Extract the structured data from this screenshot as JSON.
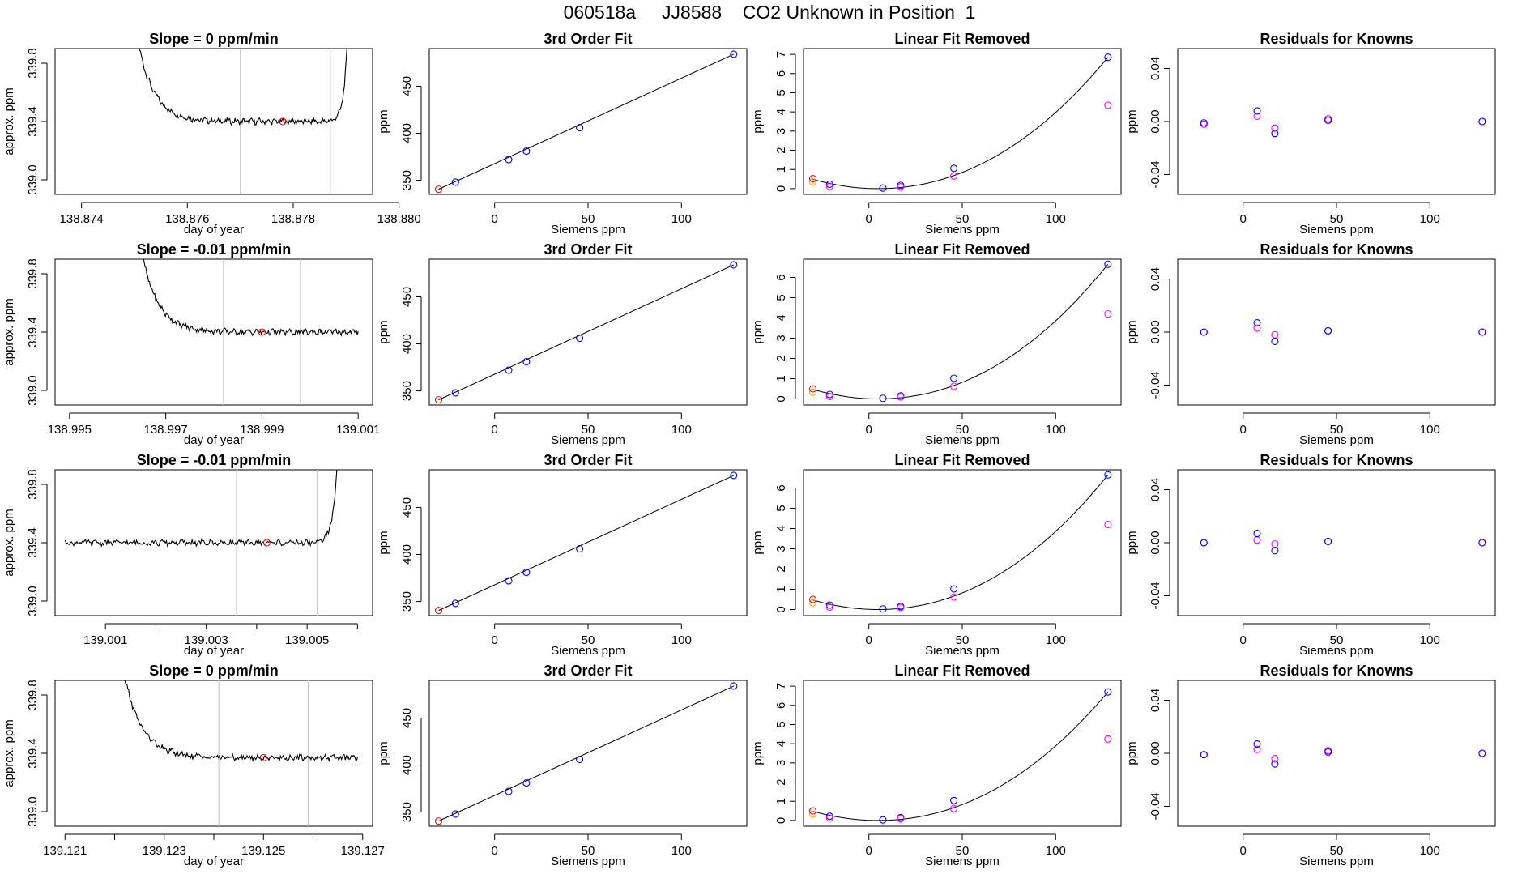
{
  "title": "060518a     JJ8588    CO2 Unknown in Position  1",
  "colors": {
    "axis": "#000000",
    "grid": "#c8c8c8",
    "line": "#000000",
    "marker": "#ff0000",
    "blue": "#0000ff",
    "magenta": "#ff00ff",
    "orange": "#ffa500",
    "purple": "#8000ff"
  },
  "chart_data": [
    {
      "row": 1,
      "col": 1,
      "type": "line",
      "title": "Slope =  0  ppm/min",
      "xlabel": "day of year",
      "ylabel": "approx. ppm",
      "xlim": [
        138.8735,
        138.8795
      ],
      "ylim": [
        338.9,
        339.9
      ],
      "xticks": [
        138.874,
        138.876,
        138.878,
        138.88
      ],
      "xtick_labels": [
        "138.874",
        "138.876",
        "138.878",
        "138.880"
      ],
      "yticks": [
        339.0,
        339.4,
        339.8
      ],
      "ytick_labels": [
        "339.0",
        "339.4",
        "339.8"
      ],
      "vlines": [
        138.877,
        138.8787
      ],
      "marker": [
        138.8778,
        339.4
      ],
      "line": {
        "x_start": 138.8748,
        "x_end": 138.8791,
        "baseline": 339.4,
        "rise_start": true,
        "rise_end": true
      }
    },
    {
      "row": 1,
      "col": 2,
      "type": "scatter",
      "title": "3rd Order Fit",
      "xlabel": "Siemens ppm",
      "ylabel": "ppm",
      "xlim": [
        -35,
        135
      ],
      "ylim": [
        335,
        490
      ],
      "xticks": [
        0,
        50,
        100
      ],
      "yticks": [
        350,
        400,
        450
      ],
      "points_x": [
        -30,
        -21,
        7.5,
        17,
        45.5,
        128
      ],
      "points_y": [
        340.5,
        348,
        372,
        381,
        406,
        484
      ],
      "fit_line": [
        [
          -30,
          340.5
        ],
        [
          128,
          484
        ]
      ]
    },
    {
      "row": 1,
      "col": 3,
      "type": "scatter",
      "title": "Linear Fit Removed",
      "xlabel": "Siemens ppm",
      "ylabel": "ppm",
      "xlim": [
        -35,
        135
      ],
      "ylim": [
        -0.3,
        7.3
      ],
      "xticks": [
        0,
        50,
        100
      ],
      "yticks": [
        0,
        1,
        2,
        3,
        4,
        5,
        6,
        7
      ],
      "blue_x": [
        -30,
        -21,
        7.5,
        17,
        45.5,
        128
      ],
      "blue_y": [
        0.52,
        0.23,
        0.03,
        0.17,
        1.06,
        6.85
      ],
      "magenta_x": [
        -21,
        17,
        45.5,
        128
      ],
      "magenta_y": [
        0.12,
        0.1,
        0.66,
        4.35
      ],
      "orange": [
        -30,
        0.35
      ],
      "red": [
        -30,
        0.52
      ],
      "curve": [
        0.0003,
        -0.005,
        0.0
      ]
    },
    {
      "row": 1,
      "col": 4,
      "type": "scatter",
      "title": "Residuals for Knowns",
      "xlabel": "Siemens ppm",
      "ylabel": "ppm",
      "xlim": [
        -35,
        135
      ],
      "ylim": [
        -0.055,
        0.055
      ],
      "xticks": [
        0,
        50,
        100
      ],
      "yticks": [
        -0.04,
        0.0,
        0.04
      ],
      "ytick_labels": [
        "-0.04",
        "0.00",
        "0.04"
      ],
      "blue_x": [
        -21,
        7.5,
        17,
        45.5,
        128
      ],
      "blue_y": [
        -0.001,
        0.008,
        -0.009,
        0.001,
        0.0
      ],
      "magenta_x": [
        -21,
        7.5,
        17,
        45.5,
        128
      ],
      "magenta_y": [
        -0.002,
        0.004,
        -0.005,
        0.002,
        0.0
      ]
    },
    {
      "row": 2,
      "col": 1,
      "type": "line",
      "title": "Slope =  -0.01  ppm/min",
      "xlabel": "day of year",
      "ylabel": "approx. ppm",
      "xlim": [
        138.9947,
        139.0013
      ],
      "ylim": [
        338.9,
        339.9
      ],
      "xticks": [
        138.995,
        138.997,
        138.999,
        139.001
      ],
      "xtick_labels": [
        "138.995",
        "138.997",
        "138.999",
        "139.001"
      ],
      "yticks": [
        339.0,
        339.4,
        339.8
      ],
      "ytick_labels": [
        "339.0",
        "339.4",
        "339.8"
      ],
      "vlines": [
        138.9982,
        138.9998
      ],
      "marker": [
        138.999,
        339.4
      ],
      "line": {
        "x_start": 138.9962,
        "x_end": 139.001,
        "baseline": 339.4,
        "rise_start": true,
        "rise_end": false
      }
    },
    {
      "row": 2,
      "col": 2,
      "type": "scatter",
      "title": "3rd Order Fit",
      "xlabel": "Siemens ppm",
      "ylabel": "ppm",
      "xlim": [
        -35,
        135
      ],
      "ylim": [
        335,
        490
      ],
      "xticks": [
        0,
        50,
        100
      ],
      "yticks": [
        350,
        400,
        450
      ],
      "points_x": [
        -30,
        -21,
        7.5,
        17,
        45.5,
        128
      ],
      "points_y": [
        340.5,
        348,
        372,
        381,
        406,
        484
      ],
      "fit_line": [
        [
          -30,
          340.5
        ],
        [
          128,
          484
        ]
      ]
    },
    {
      "row": 2,
      "col": 3,
      "type": "scatter",
      "title": "Linear Fit Removed",
      "xlabel": "Siemens ppm",
      "ylabel": "ppm",
      "xlim": [
        -35,
        135
      ],
      "ylim": [
        -0.3,
        6.9
      ],
      "xticks": [
        0,
        50,
        100
      ],
      "yticks": [
        0,
        1,
        2,
        3,
        4,
        5,
        6
      ],
      "blue_x": [
        -30,
        -21,
        7.5,
        17,
        45.5,
        128
      ],
      "blue_y": [
        0.5,
        0.22,
        0.03,
        0.15,
        1.02,
        6.65
      ],
      "magenta_x": [
        -21,
        17,
        45.5,
        128
      ],
      "magenta_y": [
        0.12,
        0.1,
        0.62,
        4.2
      ],
      "orange": [
        -30,
        0.33
      ],
      "red": [
        -30,
        0.5
      ],
      "curve": [
        0.0003,
        -0.005,
        0.0
      ]
    },
    {
      "row": 2,
      "col": 4,
      "type": "scatter",
      "title": "Residuals for Knowns",
      "xlabel": "Siemens ppm",
      "ylabel": "ppm",
      "xlim": [
        -35,
        135
      ],
      "ylim": [
        -0.055,
        0.055
      ],
      "xticks": [
        0,
        50,
        100
      ],
      "yticks": [
        -0.04,
        0.0,
        0.04
      ],
      "ytick_labels": [
        "-0.04",
        "0.00",
        "0.04"
      ],
      "blue_x": [
        -21,
        7.5,
        17,
        45.5,
        128
      ],
      "blue_y": [
        0.0,
        0.007,
        -0.007,
        0.001,
        0.0
      ],
      "magenta_x": [
        -21,
        7.5,
        17,
        45.5,
        128
      ],
      "magenta_y": [
        0.0,
        0.003,
        -0.002,
        0.001,
        0.0
      ]
    },
    {
      "row": 3,
      "col": 1,
      "type": "line",
      "title": "Slope =  -0.01  ppm/min",
      "xlabel": "day of year",
      "ylabel": "approx. ppm",
      "xlim": [
        139.0,
        139.0063
      ],
      "ylim": [
        338.9,
        339.9
      ],
      "xticks": [
        139.001,
        139.003,
        139.005
      ],
      "xtick_labels": [
        "139.001",
        "139.003",
        "139.005"
      ],
      "minor_xticks": [
        139.002,
        139.004,
        139.006
      ],
      "yticks": [
        339.0,
        339.4,
        339.8
      ],
      "ytick_labels": [
        "339.0",
        "339.4",
        "339.8"
      ],
      "vlines": [
        139.0036,
        139.0052
      ],
      "marker": [
        139.0042,
        339.4
      ],
      "line": {
        "x_start": 139.0002,
        "x_end": 139.0057,
        "baseline": 339.4,
        "rise_start": false,
        "rise_end": true
      }
    },
    {
      "row": 3,
      "col": 2,
      "type": "scatter",
      "title": "3rd Order Fit",
      "xlabel": "Siemens ppm",
      "ylabel": "ppm",
      "xlim": [
        -35,
        135
      ],
      "ylim": [
        335,
        490
      ],
      "xticks": [
        0,
        50,
        100
      ],
      "yticks": [
        350,
        400,
        450
      ],
      "points_x": [
        -30,
        -21,
        7.5,
        17,
        45.5,
        128
      ],
      "points_y": [
        340.5,
        348,
        372,
        381,
        406,
        484
      ],
      "fit_line": [
        [
          -30,
          340.5
        ],
        [
          128,
          484
        ]
      ]
    },
    {
      "row": 3,
      "col": 3,
      "type": "scatter",
      "title": "Linear Fit Removed",
      "xlabel": "Siemens ppm",
      "ylabel": "ppm",
      "xlim": [
        -35,
        135
      ],
      "ylim": [
        -0.3,
        6.9
      ],
      "xticks": [
        0,
        50,
        100
      ],
      "yticks": [
        0,
        1,
        2,
        3,
        4,
        5,
        6
      ],
      "blue_x": [
        -30,
        -21,
        7.5,
        17,
        45.5,
        128
      ],
      "blue_y": [
        0.5,
        0.22,
        0.03,
        0.15,
        1.02,
        6.65
      ],
      "magenta_x": [
        -21,
        17,
        45.5,
        128
      ],
      "magenta_y": [
        0.12,
        0.1,
        0.62,
        4.2
      ],
      "orange": [
        -30,
        0.33
      ],
      "red": [
        -30,
        0.5
      ],
      "curve": [
        0.0003,
        -0.005,
        0.0
      ]
    },
    {
      "row": 3,
      "col": 4,
      "type": "scatter",
      "title": "Residuals for Knowns",
      "xlabel": "Siemens ppm",
      "ylabel": "ppm",
      "xlim": [
        -35,
        135
      ],
      "ylim": [
        -0.055,
        0.055
      ],
      "xticks": [
        0,
        50,
        100
      ],
      "yticks": [
        -0.04,
        0.0,
        0.04
      ],
      "ytick_labels": [
        "-0.04",
        "0.00",
        "0.04"
      ],
      "blue_x": [
        -21,
        7.5,
        17,
        45.5,
        128
      ],
      "blue_y": [
        0.0,
        0.007,
        -0.006,
        0.001,
        0.0
      ],
      "magenta_x": [
        -21,
        7.5,
        17,
        45.5,
        128
      ],
      "magenta_y": [
        0.0,
        0.002,
        -0.001,
        0.001,
        0.0
      ]
    },
    {
      "row": 4,
      "col": 1,
      "type": "line",
      "title": "Slope =  0  ppm/min",
      "xlabel": "day of year",
      "ylabel": "approx. ppm",
      "xlim": [
        139.1208,
        139.1272
      ],
      "ylim": [
        338.9,
        339.9
      ],
      "xticks": [
        139.121,
        139.123,
        139.125,
        139.127
      ],
      "xtick_labels": [
        "139.121",
        "139.123",
        "139.125",
        "139.127"
      ],
      "minor_xticks": [
        139.122,
        139.124,
        139.126
      ],
      "yticks": [
        339.0,
        339.4,
        339.8
      ],
      "ytick_labels": [
        "339.0",
        "339.4",
        "339.8"
      ],
      "vlines": [
        139.1241,
        139.1259
      ],
      "marker": [
        139.125,
        339.37
      ],
      "line": {
        "x_start": 139.1219,
        "x_end": 139.1269,
        "baseline": 339.37,
        "rise_start": true,
        "rise_end": false
      }
    },
    {
      "row": 4,
      "col": 2,
      "type": "scatter",
      "title": "3rd Order Fit",
      "xlabel": "Siemens ppm",
      "ylabel": "ppm",
      "xlim": [
        -35,
        135
      ],
      "ylim": [
        335,
        490
      ],
      "xticks": [
        0,
        50,
        100
      ],
      "yticks": [
        350,
        400,
        450
      ],
      "points_x": [
        -30,
        -21,
        7.5,
        17,
        45.5,
        128
      ],
      "points_y": [
        340.5,
        348,
        372,
        381,
        406,
        484
      ],
      "fit_line": [
        [
          -30,
          340.5
        ],
        [
          128,
          484
        ]
      ]
    },
    {
      "row": 4,
      "col": 3,
      "type": "scatter",
      "title": "Linear Fit Removed",
      "xlabel": "Siemens ppm",
      "ylabel": "ppm",
      "xlim": [
        -35,
        135
      ],
      "ylim": [
        -0.3,
        7.3
      ],
      "xticks": [
        0,
        50,
        100
      ],
      "yticks": [
        0,
        1,
        2,
        3,
        4,
        5,
        6,
        7
      ],
      "blue_x": [
        -30,
        -21,
        7.5,
        17,
        45.5,
        128
      ],
      "blue_y": [
        0.5,
        0.22,
        0.03,
        0.15,
        1.04,
        6.7
      ],
      "magenta_x": [
        -21,
        17,
        45.5,
        128
      ],
      "magenta_y": [
        0.12,
        0.1,
        0.62,
        4.25
      ],
      "orange": [
        -30,
        0.33
      ],
      "red": [
        -30,
        0.5
      ],
      "curve": [
        0.0003,
        -0.005,
        0.0
      ]
    },
    {
      "row": 4,
      "col": 4,
      "type": "scatter",
      "title": "Residuals for Knowns",
      "xlabel": "Siemens ppm",
      "ylabel": "ppm",
      "xlim": [
        -35,
        135
      ],
      "ylim": [
        -0.055,
        0.055
      ],
      "xticks": [
        0,
        50,
        100
      ],
      "yticks": [
        -0.04,
        0.0,
        0.04
      ],
      "ytick_labels": [
        "-0.04",
        "0.00",
        "0.04"
      ],
      "blue_x": [
        -21,
        7.5,
        17,
        45.5,
        128
      ],
      "blue_y": [
        -0.001,
        0.007,
        -0.008,
        0.001,
        0.0
      ],
      "magenta_x": [
        -21,
        7.5,
        17,
        45.5,
        128
      ],
      "magenta_y": [
        -0.001,
        0.003,
        -0.004,
        0.002,
        0.0
      ]
    }
  ]
}
